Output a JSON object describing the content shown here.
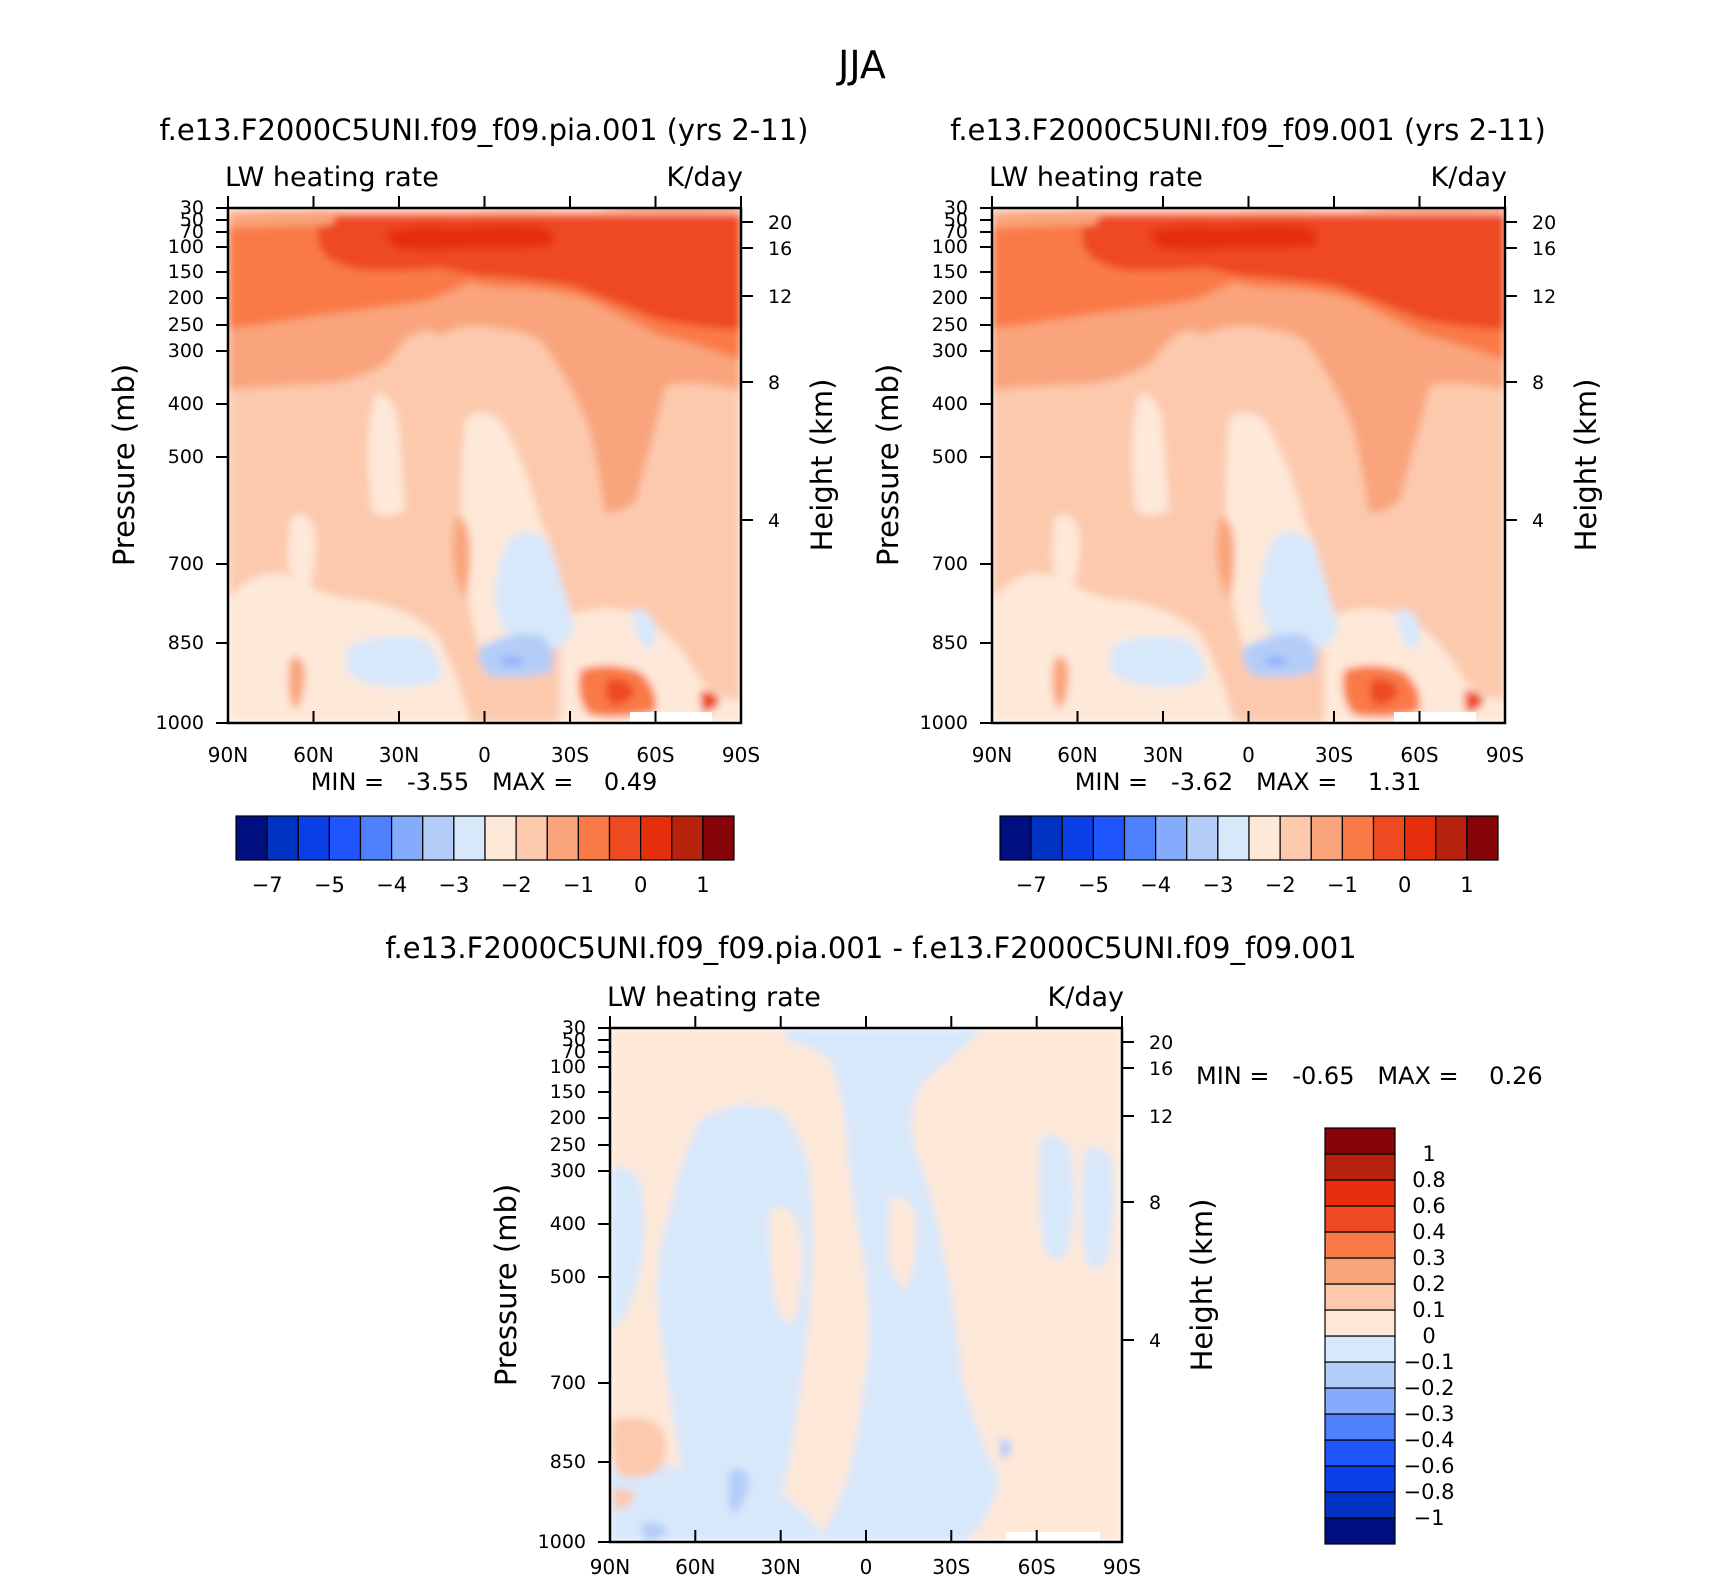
{
  "figure": {
    "title": "JJA"
  },
  "chart_data": [
    {
      "type": "heatmap",
      "panel": "top-left",
      "title": "f.e13.F2000C5UNI.f09_f09.pia.001 (yrs 2-11)",
      "left_label": "LW heating rate",
      "right_label": "K/day",
      "ylabel": "Pressure (mb)",
      "ylabel_right": "Height (km)",
      "x_ticks": [
        "90N",
        "60N",
        "30N",
        "0",
        "30S",
        "60S",
        "90S"
      ],
      "y_ticks": [
        "30",
        "50",
        "70",
        "100",
        "150",
        "200",
        "250",
        "300",
        "400",
        "500",
        "700",
        "850",
        "1000"
      ],
      "height_ticks": [
        "20",
        "16",
        "12",
        "8",
        "4"
      ],
      "ylim": [
        1000,
        30
      ],
      "y_scale": "log",
      "min_max_text": "MIN =   -3.55   MAX =    0.49",
      "stats": {
        "min": -3.55,
        "max": 0.49
      },
      "colorbar": {
        "orientation": "horizontal",
        "colors": [
          "#000f80",
          "#0033c4",
          "#0a3ee6",
          "#1f55fd",
          "#4e80fb",
          "#84abfc",
          "#b4cdf8",
          "#d8e8fb",
          "#fee8d8",
          "#fcc9ad",
          "#f9a47b",
          "#f97a46",
          "#ee4921",
          "#e52e0b",
          "#b7220c",
          "#840407"
        ],
        "labels": [
          "-7",
          "-5",
          "-4",
          "-3",
          "-2",
          "-1",
          "0",
          "1"
        ]
      }
    },
    {
      "type": "heatmap",
      "panel": "top-right",
      "title": "f.e13.F2000C5UNI.f09_f09.001 (yrs 2-11)",
      "left_label": "LW heating rate",
      "right_label": "K/day",
      "ylabel": "Pressure (mb)",
      "ylabel_right": "Height (km)",
      "x_ticks": [
        "90N",
        "60N",
        "30N",
        "0",
        "30S",
        "60S",
        "90S"
      ],
      "y_ticks": [
        "30",
        "50",
        "70",
        "100",
        "150",
        "200",
        "250",
        "300",
        "400",
        "500",
        "700",
        "850",
        "1000"
      ],
      "height_ticks": [
        "20",
        "16",
        "12",
        "8",
        "4"
      ],
      "ylim": [
        1000,
        30
      ],
      "y_scale": "log",
      "min_max_text": "MIN =   -3.62   MAX =    1.31",
      "stats": {
        "min": -3.62,
        "max": 1.31
      },
      "colorbar": {
        "orientation": "horizontal",
        "colors": [
          "#000f80",
          "#0033c4",
          "#0a3ee6",
          "#1f55fd",
          "#4e80fb",
          "#84abfc",
          "#b4cdf8",
          "#d8e8fb",
          "#fee8d8",
          "#fcc9ad",
          "#f9a47b",
          "#f97a46",
          "#ee4921",
          "#e52e0b",
          "#b7220c",
          "#840407"
        ],
        "labels": [
          "-7",
          "-5",
          "-4",
          "-3",
          "-2",
          "-1",
          "0",
          "1"
        ]
      }
    },
    {
      "type": "heatmap",
      "panel": "bottom",
      "title": "f.e13.F2000C5UNI.f09_f09.pia.001 - f.e13.F2000C5UNI.f09_f09.001",
      "left_label": "LW heating rate",
      "right_label": "K/day",
      "ylabel": "Pressure (mb)",
      "ylabel_right": "Height (km)",
      "x_ticks": [
        "90N",
        "60N",
        "30N",
        "0",
        "30S",
        "60S",
        "90S"
      ],
      "y_ticks": [
        "30",
        "50",
        "70",
        "100",
        "150",
        "200",
        "250",
        "300",
        "400",
        "500",
        "700",
        "850",
        "1000"
      ],
      "height_ticks": [
        "20",
        "16",
        "12",
        "8",
        "4"
      ],
      "ylim": [
        1000,
        30
      ],
      "y_scale": "log",
      "min_max_text": "MIN =   -0.65   MAX =    0.26",
      "stats": {
        "min": -0.65,
        "max": 0.26
      },
      "colorbar": {
        "orientation": "vertical",
        "colors": [
          "#000f80",
          "#0033c4",
          "#0a3ee6",
          "#1f55fd",
          "#4e80fb",
          "#84abfc",
          "#b4cdf8",
          "#d8e8fb",
          "#fee8d8",
          "#fcc9ad",
          "#f9a47b",
          "#f97a46",
          "#ee4921",
          "#e52e0b",
          "#b7220c",
          "#840407"
        ],
        "labels": [
          "-1",
          "-0.8",
          "-0.6",
          "-0.4",
          "-0.3",
          "-0.2",
          "-0.1",
          "0",
          "0.1",
          "0.2",
          "0.3",
          "0.4",
          "0.6",
          "0.8",
          "1"
        ]
      }
    }
  ]
}
